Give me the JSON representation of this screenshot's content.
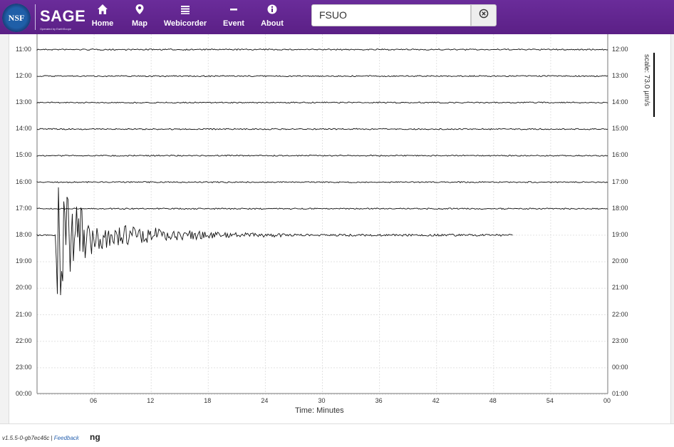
{
  "app": {
    "brand": "SAGE",
    "brand_sub": "Operated by EarthScope",
    "logo_text": "NSF"
  },
  "nav": [
    {
      "label": "Home",
      "icon": "home-icon"
    },
    {
      "label": "Map",
      "icon": "map-pin-icon"
    },
    {
      "label": "Webicorder",
      "icon": "webicorder-icon"
    },
    {
      "label": "Event",
      "icon": "event-icon"
    },
    {
      "label": "About",
      "icon": "info-icon"
    }
  ],
  "search": {
    "value": "FSUO",
    "placeholder": ""
  },
  "plot": {
    "x_label": "Time: Minutes",
    "scale_label": "scale: 73.0 µm/s",
    "left_times": [
      "11:00",
      "12:00",
      "13:00",
      "14:00",
      "15:00",
      "16:00",
      "17:00",
      "18:00",
      "19:00",
      "20:00",
      "21:00",
      "22:00",
      "23:00",
      "00:00"
    ],
    "right_times": [
      "12:00",
      "13:00",
      "14:00",
      "15:00",
      "16:00",
      "17:00",
      "18:00",
      "19:00",
      "20:00",
      "21:00",
      "22:00",
      "23:00",
      "00:00",
      "01:00"
    ],
    "x_ticks": [
      "06",
      "12",
      "18",
      "24",
      "30",
      "36",
      "42",
      "48",
      "54",
      "00"
    ],
    "rows_with_data": 8,
    "last_row_end_minute": 50
  },
  "footer": {
    "version": "v1.5.5-0-gb7ec46c",
    "separator": " | ",
    "feedback": "Feedback",
    "trailing_text": "ng"
  },
  "colors": {
    "topbar": "#5b2086",
    "trace": "#111111",
    "grid": "#e2e2e2"
  }
}
